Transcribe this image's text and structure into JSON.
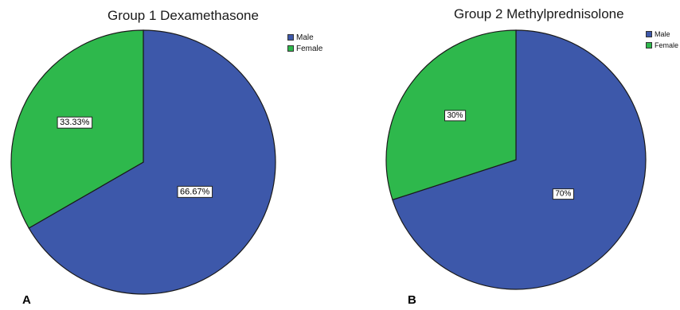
{
  "chart_data": [
    {
      "type": "pie",
      "title": "Group 1 Dexamethasone",
      "categories": [
        "Male",
        "Female"
      ],
      "values": [
        66.67,
        33.33
      ],
      "data_labels": [
        "66.67%",
        "33.33%"
      ],
      "colors": [
        "#3d58aa",
        "#2eb84c"
      ],
      "legend_position": "top-right",
      "panel_label": "A"
    },
    {
      "type": "pie",
      "title": "Group 2 Methylprednisolone",
      "categories": [
        "Male",
        "Female"
      ],
      "values": [
        70,
        30
      ],
      "data_labels": [
        "70%",
        "30%"
      ],
      "colors": [
        "#3d58aa",
        "#2eb84c"
      ],
      "legend_position": "top-right",
      "panel_label": "B"
    }
  ]
}
